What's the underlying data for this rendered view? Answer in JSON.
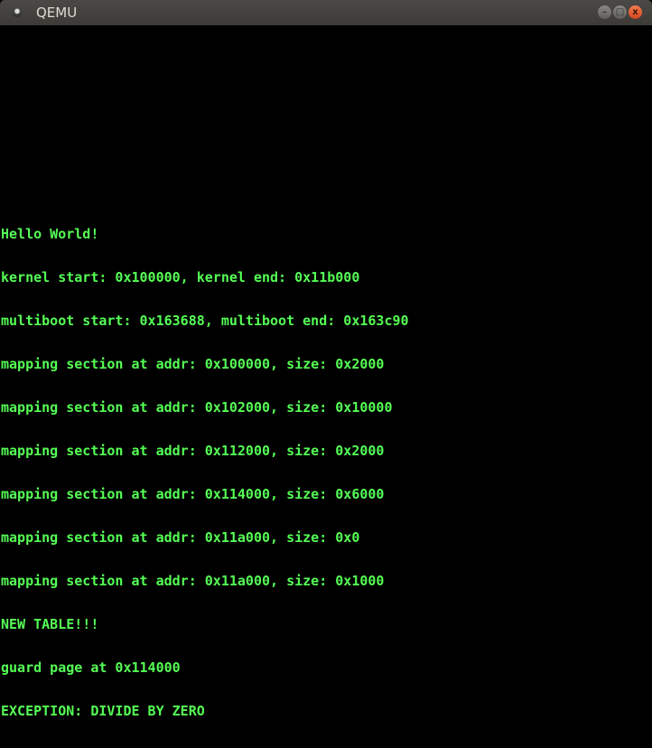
{
  "window": {
    "title": "QEMU",
    "buttons": {
      "minimize": "–",
      "maximize": "□",
      "close": "x"
    }
  },
  "colors": {
    "console_text": "#55ff55",
    "background": "#000000",
    "close_button": "#e05a2b"
  },
  "console": {
    "lines": [
      "Hello World!",
      "kernel start: 0x100000, kernel end: 0x11b000",
      "multiboot start: 0x163688, multiboot end: 0x163c90",
      "mapping section at addr: 0x100000, size: 0x2000",
      "mapping section at addr: 0x102000, size: 0x10000",
      "mapping section at addr: 0x112000, size: 0x2000",
      "mapping section at addr: 0x114000, size: 0x6000",
      "mapping section at addr: 0x11a000, size: 0x0",
      "mapping section at addr: 0x11a000, size: 0x1000",
      "NEW TABLE!!!",
      "guard page at 0x114000",
      "EXCEPTION: DIVIDE BY ZERO"
    ]
  }
}
